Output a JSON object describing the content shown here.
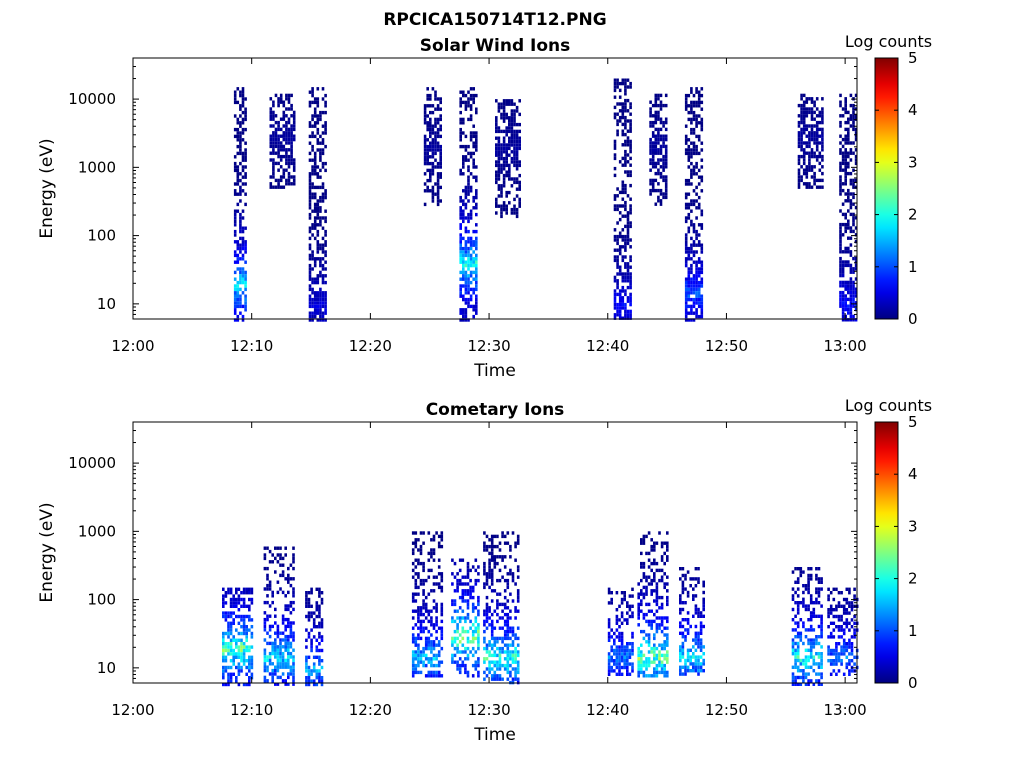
{
  "figure_title": "RPCICA150714T12.PNG",
  "chart_data": [
    {
      "type": "heatmap",
      "title": "Solar Wind Ions",
      "xlabel": "Time",
      "ylabel": "Energy (eV)",
      "y_scale": "log",
      "xlim": [
        "12:00",
        "13:01"
      ],
      "ylim": [
        6,
        40000
      ],
      "x_ticks": [
        "12:00",
        "12:10",
        "12:20",
        "12:30",
        "12:40",
        "12:50",
        "13:00"
      ],
      "y_ticks": [
        "10",
        "100",
        "1000",
        "10000"
      ],
      "colorbar": {
        "label": "Log counts",
        "min": 0,
        "max": 5,
        "ticks": [
          "0",
          "1",
          "2",
          "3",
          "4",
          "5"
        ],
        "colormap": "jet"
      },
      "bursts": [
        {
          "t_start": "12:08.5",
          "t_end": "12:09.5",
          "e_min": 6,
          "e_max": 15000,
          "peak_log_counts": 2.2,
          "peak_energy": 20
        },
        {
          "t_start": "12:11.5",
          "t_end": "12:13.5",
          "e_min": 500,
          "e_max": 12000,
          "peak_log_counts": 0.2,
          "peak_energy": 3000
        },
        {
          "t_start": "12:14.8",
          "t_end": "12:16.3",
          "e_min": 6,
          "e_max": 15000,
          "peak_log_counts": 0.6,
          "peak_energy": 10
        },
        {
          "t_start": "12:24.5",
          "t_end": "12:26",
          "e_min": 300,
          "e_max": 15000,
          "peak_log_counts": 0.2,
          "peak_energy": 2000
        },
        {
          "t_start": "12:27.5",
          "t_end": "12:29",
          "e_min": 6,
          "e_max": 15000,
          "peak_log_counts": 2.5,
          "peak_energy": 40
        },
        {
          "t_start": "12:30.5",
          "t_end": "12:32.5",
          "e_min": 200,
          "e_max": 10000,
          "peak_log_counts": 0.2,
          "peak_energy": 2000
        },
        {
          "t_start": "12:40.5",
          "t_end": "12:42",
          "e_min": 6,
          "e_max": 20000,
          "peak_log_counts": 0.8,
          "peak_energy": 10
        },
        {
          "t_start": "12:43.5",
          "t_end": "12:45",
          "e_min": 300,
          "e_max": 12000,
          "peak_log_counts": 0.2,
          "peak_energy": 2000
        },
        {
          "t_start": "12:46.5",
          "t_end": "12:48",
          "e_min": 6,
          "e_max": 15000,
          "peak_log_counts": 1.3,
          "peak_energy": 15
        },
        {
          "t_start": "12:56",
          "t_end": "12:58",
          "e_min": 500,
          "e_max": 12000,
          "peak_log_counts": 0.2,
          "peak_energy": 3000
        },
        {
          "t_start": "12:59.5",
          "t_end": "13:01",
          "e_min": 6,
          "e_max": 12000,
          "peak_log_counts": 0.9,
          "peak_energy": 10
        }
      ]
    },
    {
      "type": "heatmap",
      "title": "Cometary Ions",
      "xlabel": "Time",
      "ylabel": "Energy (eV)",
      "y_scale": "log",
      "xlim": [
        "12:00",
        "13:01"
      ],
      "ylim": [
        6,
        40000
      ],
      "x_ticks": [
        "12:00",
        "12:10",
        "12:20",
        "12:30",
        "12:40",
        "12:50",
        "13:00"
      ],
      "y_ticks": [
        "10",
        "100",
        "1000",
        "10000"
      ],
      "colorbar": {
        "label": "Log counts",
        "min": 0,
        "max": 5,
        "ticks": [
          "0",
          "1",
          "2",
          "3",
          "4",
          "5"
        ],
        "colormap": "jet"
      },
      "bursts": [
        {
          "t_start": "12:07.5",
          "t_end": "12:10",
          "e_min": 6,
          "e_max": 150,
          "peak_log_counts": 2.9,
          "peak_energy": 20
        },
        {
          "t_start": "12:11",
          "t_end": "12:13.5",
          "e_min": 6,
          "e_max": 600,
          "peak_log_counts": 2.2,
          "peak_energy": 15
        },
        {
          "t_start": "12:14.5",
          "t_end": "12:16",
          "e_min": 6,
          "e_max": 150,
          "peak_log_counts": 1.8,
          "peak_energy": 10
        },
        {
          "t_start": "12:23.5",
          "t_end": "12:26",
          "e_min": 8,
          "e_max": 1000,
          "peak_log_counts": 2.0,
          "peak_energy": 15
        },
        {
          "t_start": "12:26.8",
          "t_end": "12:29",
          "e_min": 8,
          "e_max": 400,
          "peak_log_counts": 3.2,
          "peak_energy": 30
        },
        {
          "t_start": "12:29.5",
          "t_end": "12:32.5",
          "e_min": 6,
          "e_max": 1000,
          "peak_log_counts": 2.6,
          "peak_energy": 15
        },
        {
          "t_start": "12:40",
          "t_end": "12:42",
          "e_min": 8,
          "e_max": 150,
          "peak_log_counts": 1.5,
          "peak_energy": 15
        },
        {
          "t_start": "12:42.5",
          "t_end": "12:45",
          "e_min": 8,
          "e_max": 1000,
          "peak_log_counts": 3.0,
          "peak_energy": 15
        },
        {
          "t_start": "12:46",
          "t_end": "12:48",
          "e_min": 8,
          "e_max": 300,
          "peak_log_counts": 2.2,
          "peak_energy": 15
        },
        {
          "t_start": "12:55.5",
          "t_end": "12:58",
          "e_min": 6,
          "e_max": 300,
          "peak_log_counts": 2.5,
          "peak_energy": 15
        },
        {
          "t_start": "12:58.5",
          "t_end": "13:01",
          "e_min": 8,
          "e_max": 150,
          "peak_log_counts": 1.5,
          "peak_energy": 15
        }
      ]
    }
  ]
}
